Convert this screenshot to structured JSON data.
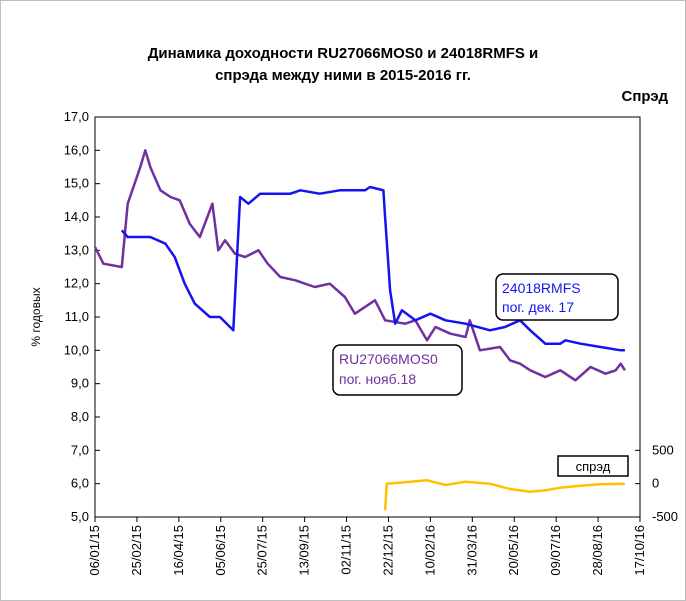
{
  "chart_data": {
    "type": "line",
    "title": [
      "Динамика доходности RU27066MOS0 и 24018RMFS и",
      "спрэда между ними в 2015-2016 гг."
    ],
    "ylabel": "% годовых",
    "y2label": "Спрэд",
    "xlim": [
      "2015-01-06",
      "2016-10-17"
    ],
    "xticks": [
      {
        "value": "2015-01-06",
        "label": "06/01/15"
      },
      {
        "value": "2015-02-25",
        "label": "25/02/15"
      },
      {
        "value": "2015-04-16",
        "label": "16/04/15"
      },
      {
        "value": "2015-06-05",
        "label": "05/06/15"
      },
      {
        "value": "2015-07-25",
        "label": "25/07/15"
      },
      {
        "value": "2015-09-13",
        "label": "13/09/15"
      },
      {
        "value": "2015-11-02",
        "label": "02/11/15"
      },
      {
        "value": "2015-12-22",
        "label": "22/12/15"
      },
      {
        "value": "2016-02-10",
        "label": "10/02/16"
      },
      {
        "value": "2016-03-31",
        "label": "31/03/16"
      },
      {
        "value": "2016-05-20",
        "label": "20/05/16"
      },
      {
        "value": "2016-07-09",
        "label": "09/07/16"
      },
      {
        "value": "2016-08-28",
        "label": "28/08/16"
      },
      {
        "value": "2016-10-17",
        "label": "17/10/16"
      }
    ],
    "ylim": [
      5,
      17
    ],
    "yticks": [
      {
        "value": 5,
        "label": "5,0"
      },
      {
        "value": 6,
        "label": "6,0"
      },
      {
        "value": 7,
        "label": "7,0"
      },
      {
        "value": 8,
        "label": "8,0"
      },
      {
        "value": 9,
        "label": "9,0"
      },
      {
        "value": 10,
        "label": "10,0"
      },
      {
        "value": 11,
        "label": "11,0"
      },
      {
        "value": 12,
        "label": "12,0"
      },
      {
        "value": 13,
        "label": "13,0"
      },
      {
        "value": 14,
        "label": "14,0"
      },
      {
        "value": 15,
        "label": "15,0"
      },
      {
        "value": 16,
        "label": "16,0"
      },
      {
        "value": 17,
        "label": "17,0"
      }
    ],
    "y2lim": [
      -500,
      5500
    ],
    "y2ticks": [
      -500,
      0,
      500
    ],
    "series": [
      {
        "name": "RU27066MOS0",
        "color": "#7030a0",
        "x": [
          "2015-01-06",
          "2015-01-16",
          "2015-02-07",
          "2015-02-14",
          "2015-03-01",
          "2015-03-07",
          "2015-03-13",
          "2015-03-25",
          "2015-04-06",
          "2015-04-17",
          "2015-04-29",
          "2015-05-11",
          "2015-05-26",
          "2015-06-02",
          "2015-06-10",
          "2015-06-22",
          "2015-07-04",
          "2015-07-20",
          "2015-07-31",
          "2015-08-15",
          "2015-09-02",
          "2015-09-25",
          "2015-10-13",
          "2015-10-31",
          "2015-11-12",
          "2015-12-06",
          "2015-12-18",
          "2016-01-11",
          "2016-01-23",
          "2016-02-06",
          "2016-02-16",
          "2016-03-05",
          "2016-03-23",
          "2016-03-28",
          "2016-04-09",
          "2016-05-03",
          "2016-05-15",
          "2016-05-27",
          "2016-06-08",
          "2016-06-26",
          "2016-07-14",
          "2016-08-01",
          "2016-08-19",
          "2016-09-06",
          "2016-09-18",
          "2016-09-24",
          "2016-09-29"
        ],
        "values": [
          13.1,
          12.6,
          12.5,
          14.4,
          15.5,
          16.0,
          15.5,
          14.8,
          14.6,
          14.5,
          13.8,
          13.4,
          14.4,
          13.0,
          13.3,
          12.9,
          12.8,
          13.0,
          12.6,
          12.2,
          12.1,
          11.9,
          12.0,
          11.6,
          11.1,
          11.5,
          10.9,
          10.8,
          10.9,
          10.3,
          10.7,
          10.5,
          10.4,
          10.9,
          10.0,
          10.1,
          9.7,
          9.6,
          9.4,
          9.2,
          9.4,
          9.1,
          9.5,
          9.3,
          9.4,
          9.6,
          9.4
        ]
      },
      {
        "name": "24018RMFS",
        "color": "#1414f0",
        "x": [
          "2015-02-07",
          "2015-02-14",
          "2015-03-13",
          "2015-03-31",
          "2015-04-11",
          "2015-04-23",
          "2015-05-05",
          "2015-05-23",
          "2015-06-04",
          "2015-06-20",
          "2015-06-28",
          "2015-07-08",
          "2015-07-22",
          "2015-08-27",
          "2015-09-08",
          "2015-10-01",
          "2015-10-25",
          "2015-11-24",
          "2015-11-30",
          "2015-12-16",
          "2015-12-18",
          "2015-12-24",
          "2015-12-30",
          "2016-01-07",
          "2016-01-23",
          "2016-02-10",
          "2016-02-28",
          "2016-03-23",
          "2016-04-21",
          "2016-05-09",
          "2016-05-27",
          "2016-06-08",
          "2016-06-26",
          "2016-07-14",
          "2016-07-20",
          "2016-08-07",
          "2016-08-31",
          "2016-09-24",
          "2016-09-29"
        ],
        "values": [
          13.6,
          13.4,
          13.4,
          13.2,
          12.8,
          12.0,
          11.4,
          11.0,
          11.0,
          10.6,
          14.6,
          14.4,
          14.7,
          14.7,
          14.8,
          14.7,
          14.8,
          14.8,
          14.9,
          14.8,
          14.0,
          11.8,
          10.8,
          11.2,
          10.9,
          11.1,
          10.9,
          10.8,
          10.6,
          10.7,
          10.9,
          10.6,
          10.2,
          10.2,
          10.3,
          10.2,
          10.1,
          10.0,
          10.0
        ]
      },
      {
        "name": "спрэд",
        "color": "#ffc000",
        "axis": "y2",
        "x": [
          "2015-12-18",
          "2015-12-20",
          "2016-01-11",
          "2016-02-06",
          "2016-02-28",
          "2016-03-23",
          "2016-04-21",
          "2016-05-15",
          "2016-06-08",
          "2016-06-26",
          "2016-07-14",
          "2016-08-07",
          "2016-08-31",
          "2016-09-29"
        ],
        "values": [
          -400,
          0,
          20,
          50,
          -20,
          30,
          0,
          -80,
          -120,
          -100,
          -60,
          -30,
          -10,
          0
        ]
      }
    ],
    "annotations": [
      "пог. нояб.18",
      "пог. дек. 17"
    ]
  }
}
